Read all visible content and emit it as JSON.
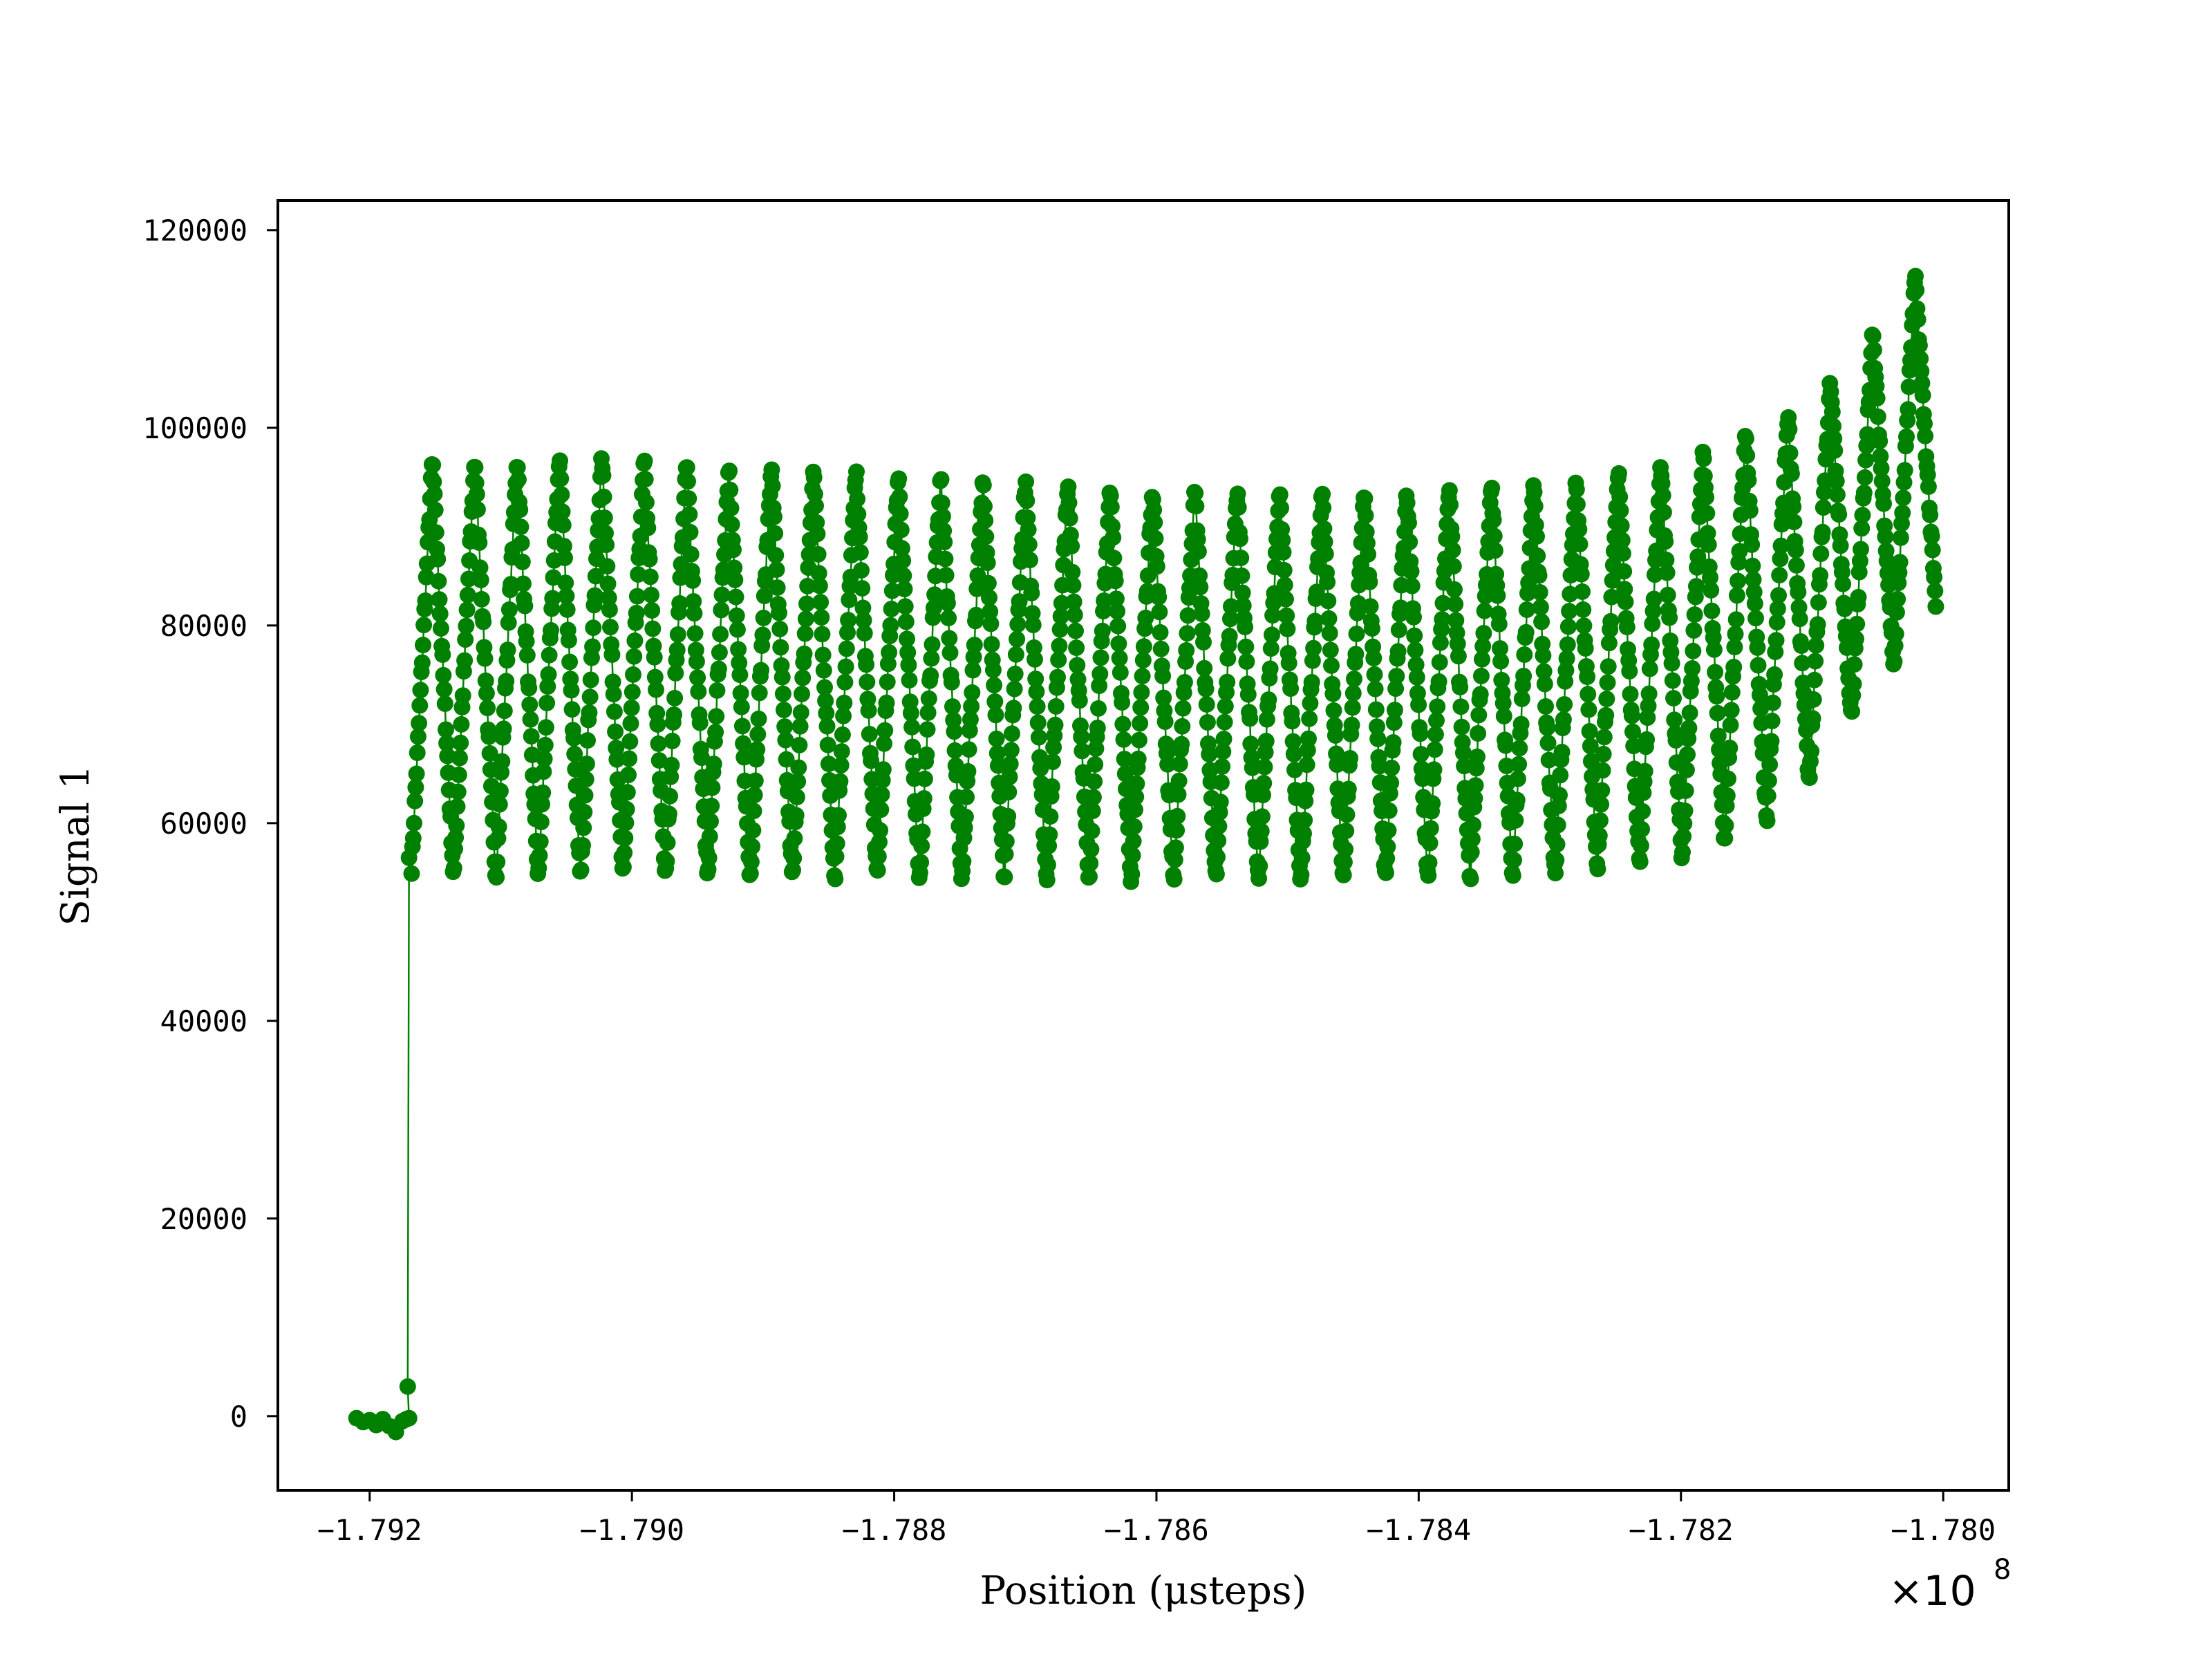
{
  "chart_data": {
    "type": "scatter",
    "title": "",
    "xlabel": "Position (μsteps)",
    "ylabel": "Signal 1",
    "x_offset_label": "×10",
    "x_offset_exponent": "8",
    "x_scale": 100000000,
    "xlim": [
      -1.7927,
      -1.7795
    ],
    "ylim": [
      -7500,
      123000
    ],
    "x_ticks": [
      -1.792,
      -1.79,
      -1.788,
      -1.786,
      -1.784,
      -1.782,
      -1.78
    ],
    "x_tick_labels": [
      "−1.792",
      "−1.790",
      "−1.788",
      "−1.786",
      "−1.784",
      "−1.782",
      "−1.780"
    ],
    "y_ticks": [
      0,
      20000,
      40000,
      60000,
      80000,
      100000,
      120000
    ],
    "y_tick_labels": [
      "0",
      "20000",
      "40000",
      "60000",
      "80000",
      "100000",
      "120000"
    ],
    "grid": false,
    "legend": "none",
    "color": "#008000",
    "series": [
      {
        "baseline_points": [
          [
            -1.7921,
            -200
          ],
          [
            -1.79205,
            -600
          ],
          [
            -1.792,
            -400
          ],
          [
            -1.79195,
            -900
          ],
          [
            -1.7919,
            -300
          ],
          [
            -1.79185,
            -1000
          ],
          [
            -1.7918,
            -1600
          ],
          [
            -1.79175,
            -500
          ],
          [
            -1.79172,
            -300
          ],
          [
            -1.7917,
            -200
          ]
        ],
        "jump_points": [
          [
            -1.79171,
            3000
          ],
          [
            -1.7917,
            56500
          ]
        ],
        "sweep_envelope": {
          "x_start": -1.79168,
          "x_end": -1.78005,
          "sweep_count": 72,
          "points_per_sweep": 26,
          "lower": [
            [
              -1.79168,
              55500
            ],
            [
              -1.791,
              55000
            ],
            [
              -1.79,
              55000
            ],
            [
              -1.788,
              54800
            ],
            [
              -1.786,
              54600
            ],
            [
              -1.784,
              54800
            ],
            [
              -1.783,
              55200
            ],
            [
              -1.782,
              57000
            ],
            [
              -1.7815,
              59000
            ],
            [
              -1.7812,
              62000
            ],
            [
              -1.781,
              65000
            ],
            [
              -1.7808,
              69000
            ],
            [
              -1.7806,
              73000
            ],
            [
              -1.7804,
              76000
            ],
            [
              -1.7802,
              79000
            ],
            [
              -1.78005,
              82000
            ]
          ],
          "upper": [
            [
              -1.79168,
              96000
            ],
            [
              -1.7905,
              96500
            ],
            [
              -1.789,
              95500
            ],
            [
              -1.787,
              94000
            ],
            [
              -1.786,
              93300
            ],
            [
              -1.785,
              93000
            ],
            [
              -1.784,
              93000
            ],
            [
              -1.783,
              93800
            ],
            [
              -1.782,
              96000
            ],
            [
              -1.7815,
              99000
            ],
            [
              -1.781,
              102000
            ],
            [
              -1.7808,
              105000
            ],
            [
              -1.7806,
              108000
            ],
            [
              -1.7804,
              111000
            ],
            [
              -1.7802,
              115000
            ],
            [
              -1.78005,
              118000
            ]
          ]
        }
      }
    ]
  }
}
